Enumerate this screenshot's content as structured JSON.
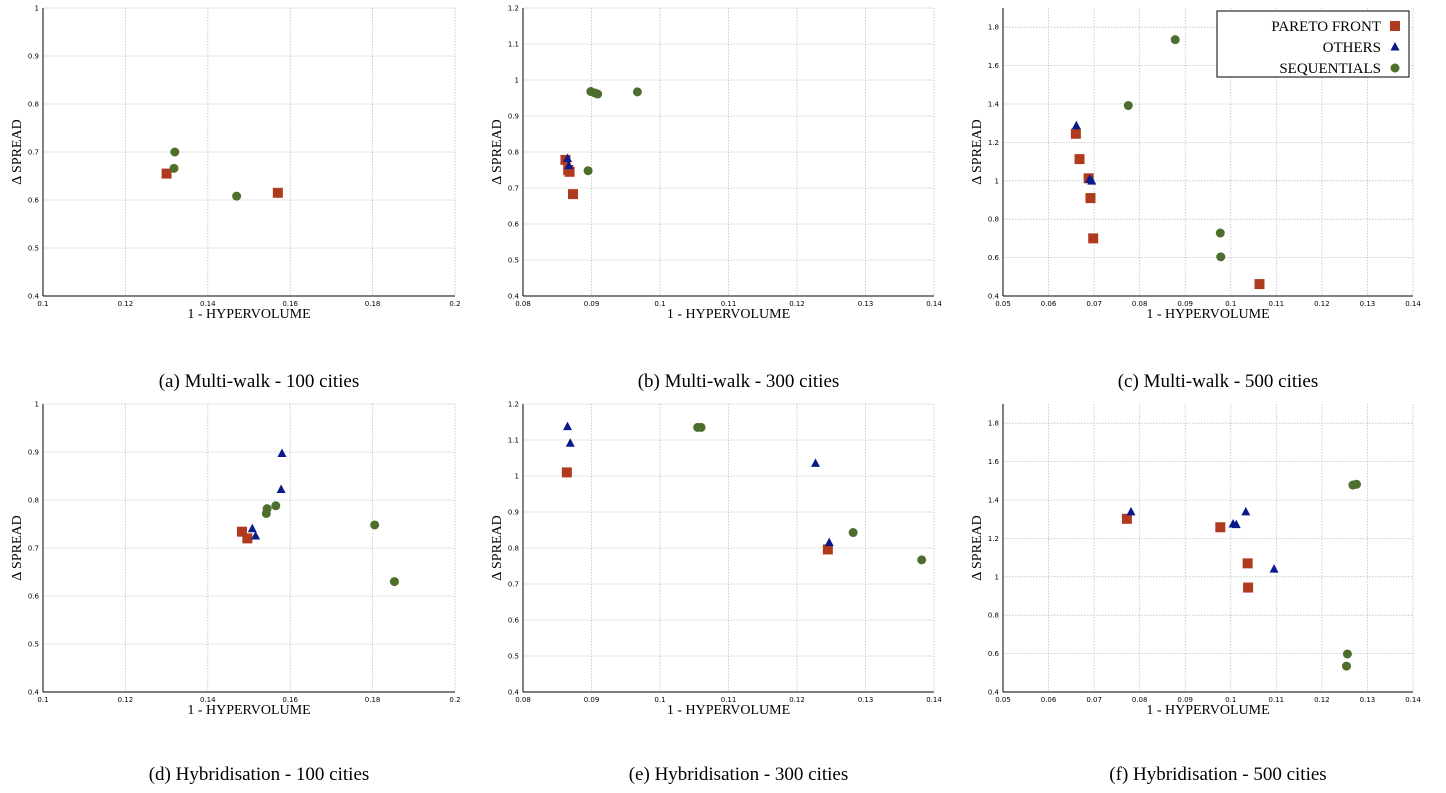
{
  "colors": {
    "pareto": "#b03a1e",
    "others": "#0a1a8a",
    "sequentials": "#4e6e2e",
    "grid": "#bfbfbf"
  },
  "legend": {
    "entries": [
      {
        "label": "PARETO FRONT",
        "series": "pareto",
        "marker": "square"
      },
      {
        "label": "OTHERS",
        "series": "others",
        "marker": "triangle"
      },
      {
        "label": "SEQUENTIALS",
        "series": "sequentials",
        "marker": "circle"
      }
    ]
  },
  "chart_data": [
    {
      "type": "scatter",
      "caption": "(a) Multi-walk - 100 cities",
      "xlabel": "1 - HYPERVOLUME",
      "ylabel": "Δ SPREAD",
      "xlim": [
        0.1,
        0.2
      ],
      "ylim": [
        0.4,
        1.0
      ],
      "xticks": [
        "0.1",
        "0.12",
        "0.14",
        "0.16",
        "0.18",
        "0.2"
      ],
      "yticks": [
        "0.4",
        "0.5",
        "0.6",
        "0.7",
        "0.8",
        "0.9",
        "1"
      ],
      "legend": false,
      "series": [
        {
          "name": "PARETO FRONT",
          "key": "pareto",
          "marker": "square",
          "points": [
            [
              0.13,
              0.655
            ],
            [
              0.157,
              0.615
            ]
          ]
        },
        {
          "name": "OTHERS",
          "key": "others",
          "marker": "triangle",
          "points": []
        },
        {
          "name": "SEQUENTIALS",
          "key": "sequentials",
          "marker": "circle",
          "points": [
            [
              0.132,
              0.7
            ],
            [
              0.1318,
              0.666
            ],
            [
              0.147,
              0.608
            ]
          ]
        }
      ]
    },
    {
      "type": "scatter",
      "caption": "(b) Multi-walk - 300 cities",
      "xlabel": "1 - HYPERVOLUME",
      "ylabel": "Δ SPREAD",
      "xlim": [
        0.08,
        0.14
      ],
      "ylim": [
        0.4,
        1.2
      ],
      "xticks": [
        "0.08",
        "0.09",
        "0.1",
        "0.11",
        "0.12",
        "0.13",
        "0.14"
      ],
      "yticks": [
        "0.4",
        "0.5",
        "0.6",
        "0.7",
        "0.8",
        "0.9",
        "1",
        "1.1",
        "1.2"
      ],
      "legend": false,
      "series": [
        {
          "name": "PARETO FRONT",
          "key": "pareto",
          "marker": "square",
          "points": [
            [
              0.0862,
              0.778
            ],
            [
              0.0866,
              0.75
            ],
            [
              0.0868,
              0.745
            ],
            [
              0.0873,
              0.683
            ]
          ]
        },
        {
          "name": "OTHERS",
          "key": "others",
          "marker": "triangle",
          "points": [
            [
              0.0865,
              0.782
            ],
            [
              0.0867,
              0.762
            ]
          ]
        },
        {
          "name": "SEQUENTIALS",
          "key": "sequentials",
          "marker": "circle",
          "points": [
            [
              0.0899,
              0.968
            ],
            [
              0.0905,
              0.964
            ],
            [
              0.0909,
              0.961
            ],
            [
              0.0967,
              0.967
            ],
            [
              0.0895,
              0.748
            ]
          ]
        }
      ]
    },
    {
      "type": "scatter",
      "caption": "(c) Multi-walk - 500 cities",
      "xlabel": "1 - HYPERVOLUME",
      "ylabel": "Δ SPREAD",
      "xlim": [
        0.05,
        0.14
      ],
      "ylim": [
        0.4,
        1.9
      ],
      "xticks": [
        "0.05",
        "0.06",
        "0.07",
        "0.08",
        "0.09",
        "0.1",
        "0.11",
        "0.12",
        "0.13",
        "0.14"
      ],
      "yticks": [
        "0.4",
        "0.6",
        "0.8",
        "1",
        "1.2",
        "1.4",
        "1.6",
        "1.8"
      ],
      "legend": true,
      "series": [
        {
          "name": "PARETO FRONT",
          "key": "pareto",
          "marker": "square",
          "points": [
            [
              0.066,
              1.245
            ],
            [
              0.0668,
              1.113
            ],
            [
              0.0688,
              1.013
            ],
            [
              0.0692,
              0.91
            ],
            [
              0.0698,
              0.7
            ],
            [
              0.1063,
              0.462
            ]
          ]
        },
        {
          "name": "OTHERS",
          "key": "others",
          "marker": "triangle",
          "points": [
            [
              0.0661,
              1.287
            ],
            [
              0.069,
              1.008
            ],
            [
              0.0695,
              0.998
            ]
          ]
        },
        {
          "name": "SEQUENTIALS",
          "key": "sequentials",
          "marker": "circle",
          "points": [
            [
              0.0878,
              1.735
            ],
            [
              0.0775,
              1.392
            ],
            [
              0.0977,
              0.728
            ],
            [
              0.0978,
              0.604
            ]
          ]
        }
      ]
    },
    {
      "type": "scatter",
      "caption": "(d) Hybridisation - 100 cities",
      "xlabel": "1 - HYPERVOLUME",
      "ylabel": "Δ SPREAD",
      "xlim": [
        0.1,
        0.2
      ],
      "ylim": [
        0.4,
        1.0
      ],
      "xticks": [
        "0.1",
        "0.12",
        "0.14",
        "0.16",
        "0.18",
        "0.2"
      ],
      "yticks": [
        "0.4",
        "0.5",
        "0.6",
        "0.7",
        "0.8",
        "0.9",
        "1"
      ],
      "legend": false,
      "series": [
        {
          "name": "PARETO FRONT",
          "key": "pareto",
          "marker": "square",
          "points": [
            [
              0.1483,
              0.734
            ],
            [
              0.1496,
              0.72
            ]
          ]
        },
        {
          "name": "OTHERS",
          "key": "others",
          "marker": "triangle",
          "points": [
            [
              0.1508,
              0.74
            ],
            [
              0.1516,
              0.725
            ],
            [
              0.158,
              0.897
            ],
            [
              0.1578,
              0.822
            ]
          ]
        },
        {
          "name": "SEQUENTIALS",
          "key": "sequentials",
          "marker": "circle",
          "points": [
            [
              0.1544,
              0.782
            ],
            [
              0.1542,
              0.772
            ],
            [
              0.1565,
              0.788
            ],
            [
              0.1805,
              0.748
            ],
            [
              0.1853,
              0.63
            ]
          ]
        }
      ]
    },
    {
      "type": "scatter",
      "caption": "(e) Hybridisation - 300 cities",
      "xlabel": "1 - HYPERVOLUME",
      "ylabel": "Δ SPREAD",
      "xlim": [
        0.08,
        0.14
      ],
      "ylim": [
        0.4,
        1.2
      ],
      "xticks": [
        "0.08",
        "0.09",
        "0.1",
        "0.11",
        "0.12",
        "0.13",
        "0.14"
      ],
      "yticks": [
        "0.4",
        "0.5",
        "0.6",
        "0.7",
        "0.8",
        "0.9",
        "1",
        "1.1",
        "1.2"
      ],
      "legend": false,
      "series": [
        {
          "name": "PARETO FRONT",
          "key": "pareto",
          "marker": "square",
          "points": [
            [
              0.0864,
              1.01
            ],
            [
              0.1245,
              0.796
            ]
          ]
        },
        {
          "name": "OTHERS",
          "key": "others",
          "marker": "triangle",
          "points": [
            [
              0.0865,
              1.137
            ],
            [
              0.0869,
              1.091
            ],
            [
              0.1227,
              1.035
            ],
            [
              0.1247,
              0.815
            ]
          ]
        },
        {
          "name": "SEQUENTIALS",
          "key": "sequentials",
          "marker": "circle",
          "points": [
            [
              0.1055,
              1.135
            ],
            [
              0.106,
              1.135
            ],
            [
              0.1282,
              0.843
            ],
            [
              0.1382,
              0.767
            ]
          ]
        }
      ]
    },
    {
      "type": "scatter",
      "caption": "(f) Hybridisation - 500 cities",
      "xlabel": "1 - HYPERVOLUME",
      "ylabel": "Δ SPREAD",
      "xlim": [
        0.05,
        0.14
      ],
      "ylim": [
        0.4,
        1.9
      ],
      "xticks": [
        "0.05",
        "0.06",
        "0.07",
        "0.08",
        "0.09",
        "0.1",
        "0.11",
        "0.12",
        "0.13",
        "0.14"
      ],
      "yticks": [
        "0.4",
        "0.6",
        "0.8",
        "1",
        "1.2",
        "1.4",
        "1.6",
        "1.8"
      ],
      "legend": false,
      "series": [
        {
          "name": "PARETO FRONT",
          "key": "pareto",
          "marker": "square",
          "points": [
            [
              0.0772,
              1.302
            ],
            [
              0.0977,
              1.258
            ],
            [
              0.1037,
              1.07
            ],
            [
              0.1038,
              0.944
            ]
          ]
        },
        {
          "name": "OTHERS",
          "key": "others",
          "marker": "triangle",
          "points": [
            [
              0.0781,
              1.338
            ],
            [
              0.1005,
              1.275
            ],
            [
              0.1012,
              1.272
            ],
            [
              0.1033,
              1.338
            ],
            [
              0.1095,
              1.04
            ]
          ]
        },
        {
          "name": "SEQUENTIALS",
          "key": "sequentials",
          "marker": "circle",
          "points": [
            [
              0.1268,
              1.478
            ],
            [
              0.1276,
              1.482
            ],
            [
              0.1256,
              0.598
            ],
            [
              0.1254,
              0.535
            ]
          ]
        }
      ]
    }
  ]
}
